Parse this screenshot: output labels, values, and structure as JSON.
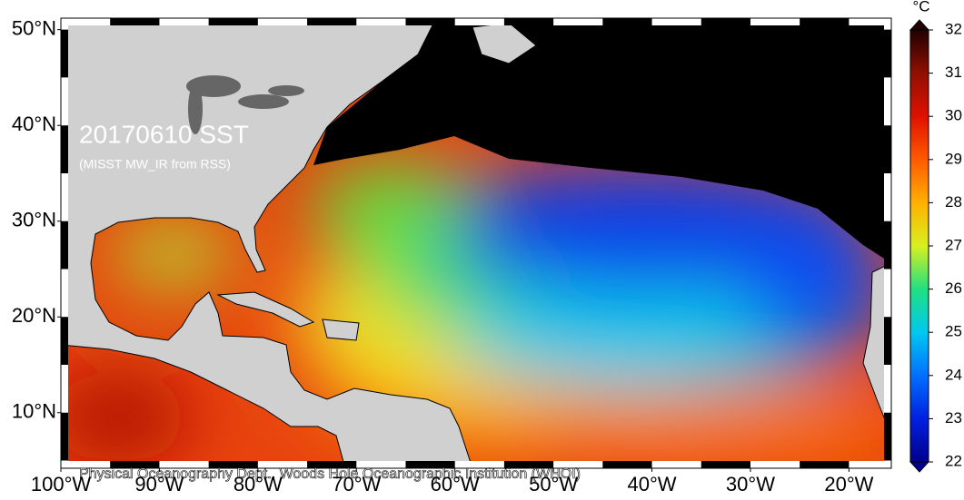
{
  "map": {
    "title": "20170610 SST",
    "subtitle": "(MISST MW_IR from RSS)",
    "credit": "Physical Oceanography Dept., Woods Hole Oceanographic Institution (WHOI)",
    "xlim": [
      -100,
      -15.7
    ],
    "ylim": [
      4.2,
      51.2
    ],
    "xticks": [
      {
        "value": -100,
        "label": "100°W"
      },
      {
        "value": -90,
        "label": "90°W"
      },
      {
        "value": -80,
        "label": "80°W"
      },
      {
        "value": -70,
        "label": "70°W"
      },
      {
        "value": -60,
        "label": "60°W"
      },
      {
        "value": -50,
        "label": "50°W"
      },
      {
        "value": -40,
        "label": "40°W"
      },
      {
        "value": -30,
        "label": "30°W"
      },
      {
        "value": -20,
        "label": "20°W"
      }
    ],
    "yticks": [
      {
        "value": 10,
        "label": "10°N"
      },
      {
        "value": 20,
        "label": "20°N"
      },
      {
        "value": 30,
        "label": "30°N"
      },
      {
        "value": 40,
        "label": "40°N"
      },
      {
        "value": 50,
        "label": "50°N"
      }
    ],
    "colorbar": {
      "unit": "°C",
      "lim": [
        22,
        32
      ],
      "ticks": [
        22,
        23,
        24,
        25,
        26,
        27,
        28,
        29,
        30,
        31,
        32
      ],
      "colors": [
        "#00008c",
        "#0020e0",
        "#0070ff",
        "#00c8f0",
        "#20e080",
        "#d8f020",
        "#ffb000",
        "#ff5a00",
        "#e01000",
        "#901000",
        "#200000"
      ]
    }
  }
}
